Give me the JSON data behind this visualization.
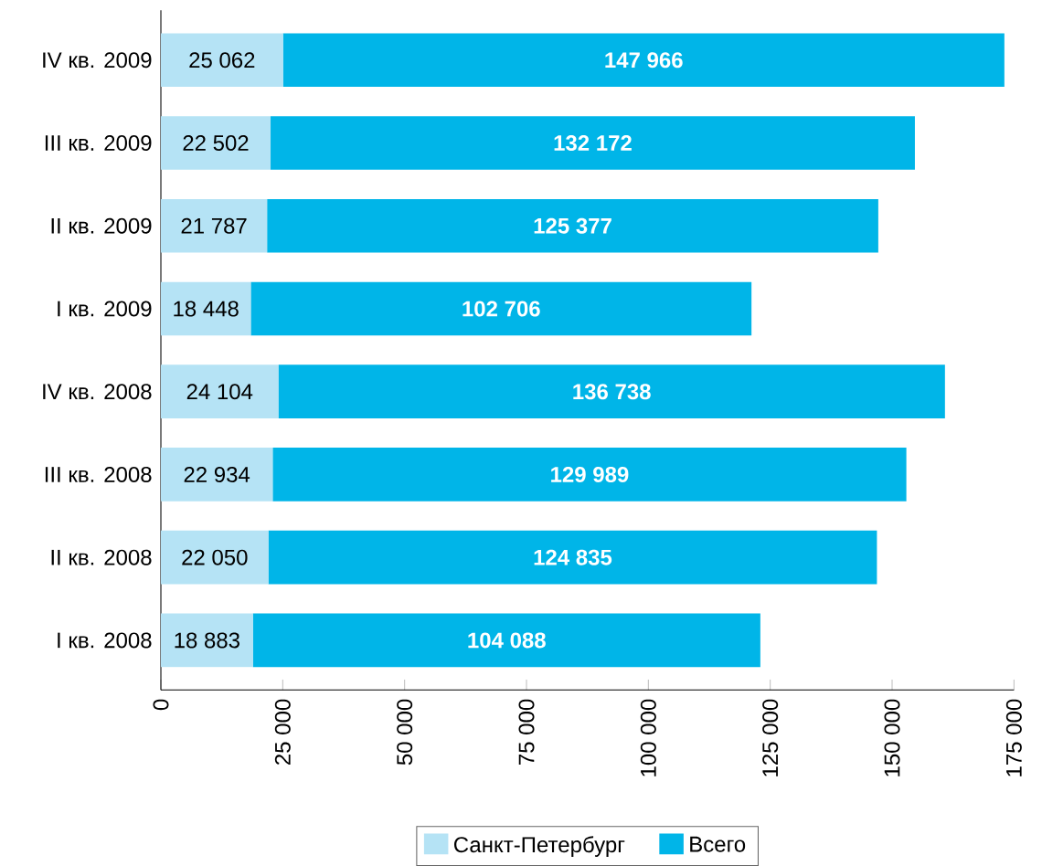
{
  "chart_data": {
    "type": "bar",
    "orientation": "horizontal",
    "stacked": true,
    "categories": [
      "IV кв. 2009",
      "III кв. 2009",
      "II кв. 2009",
      "I кв. 2009",
      "IV кв. 2008",
      "III кв. 2008",
      "II кв. 2008",
      "I кв. 2008"
    ],
    "series": [
      {
        "name": "Санкт-Петербург",
        "color": "#b5e3f5",
        "values": [
          25062,
          22502,
          21787,
          18448,
          24104,
          22934,
          22050,
          18883
        ],
        "value_labels": [
          "25 062",
          "22 502",
          "21 787",
          "18 448",
          "24 104",
          "22 934",
          "22 050",
          "18 883"
        ]
      },
      {
        "name": "Всего",
        "color": "#00b5e8",
        "values": [
          147966,
          132172,
          125377,
          102706,
          136738,
          129989,
          124835,
          104088
        ],
        "value_labels": [
          "147 966",
          "132 172",
          "125 377",
          "102 706",
          "136 738",
          "129 989",
          "124 835",
          "104 088"
        ]
      }
    ],
    "xlim": [
      0,
      175000
    ],
    "xticks": [
      0,
      {
        "value": 25000,
        "label": "25 000"
      },
      {
        "value": 50000,
        "label": "50 000"
      },
      {
        "value": 75000,
        "label": "75 000"
      },
      {
        "value": 100000,
        "label": "100 000"
      },
      {
        "value": 125000,
        "label": "125 000"
      },
      {
        "value": 150000,
        "label": "150 000"
      },
      {
        "value": 175000,
        "label": "175 000"
      }
    ],
    "legend": "bottom"
  }
}
